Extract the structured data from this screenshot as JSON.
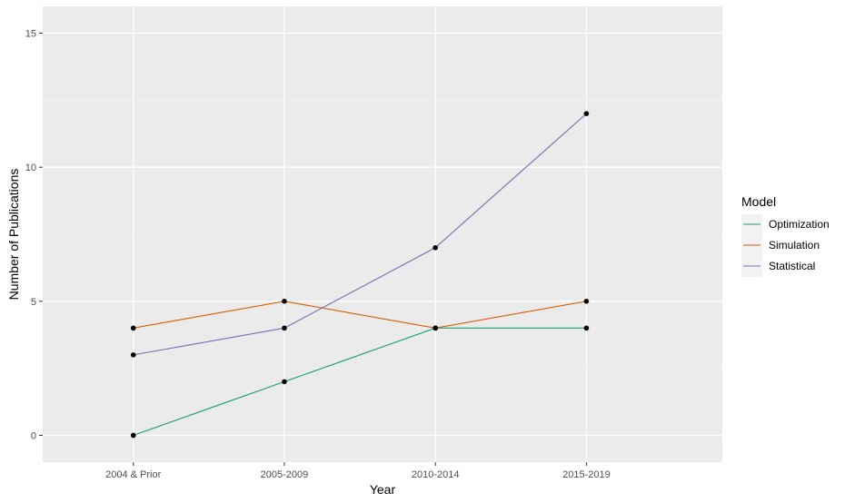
{
  "chart_data": {
    "type": "line",
    "xlabel": "Year",
    "ylabel": "Number of Publications",
    "categories": [
      "2004 & Prior",
      "2005-2009",
      "2010-2014",
      "2015-2019"
    ],
    "ylim": [
      -1,
      16
    ],
    "yticks": [
      0,
      5,
      10,
      15
    ],
    "grid": true,
    "legend": {
      "title": "Model",
      "position": "right"
    },
    "series": [
      {
        "name": "Optimization",
        "color": "#1b9e77",
        "values": [
          0,
          2,
          4,
          4
        ]
      },
      {
        "name": "Simulation",
        "color": "#d95f02",
        "values": [
          4,
          5,
          4,
          5
        ]
      },
      {
        "name": "Statistical",
        "color": "#7570b3",
        "values": [
          3,
          4,
          7,
          12
        ]
      }
    ],
    "panel_color": "#ebebeb",
    "point_color": "#000000"
  }
}
